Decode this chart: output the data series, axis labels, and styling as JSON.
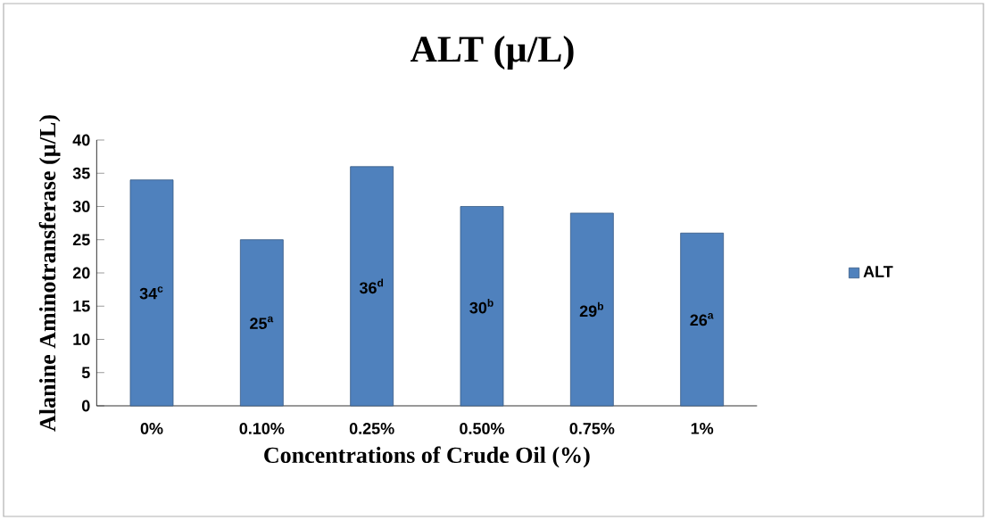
{
  "chart_data": {
    "type": "bar",
    "title": "ALT (µ/L)",
    "xlabel": "Concentrations of Crude Oil (%)",
    "ylabel": "Alanine Aminotransferase  (µ/L)",
    "categories": [
      "0%",
      "0.10%",
      "0.25%",
      "0.50%",
      "0.75%",
      "1%"
    ],
    "series": [
      {
        "name": "ALT",
        "color": "#4f81bd",
        "values": [
          34,
          25,
          36,
          30,
          29,
          26
        ],
        "value_labels": [
          "34$^{c}$",
          "25$^{a}$",
          "36$^{d}$",
          "30$^{b}$",
          "29$^{b}$",
          "26$^{a}$"
        ]
      }
    ],
    "ylim": [
      0,
      40
    ],
    "yticks": [
      0,
      5,
      10,
      15,
      20,
      25,
      30,
      35,
      40
    ],
    "legend": "right",
    "grid": false
  }
}
